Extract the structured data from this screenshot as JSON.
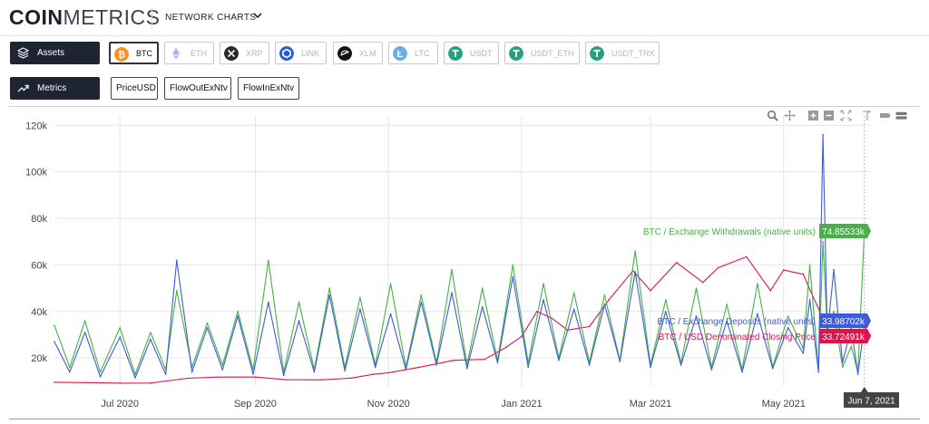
{
  "header": {
    "logo_bold": "COIN",
    "logo_light": "METRICS",
    "nav_label": "NETWORK CHARTS"
  },
  "assets_button": {
    "label": "Assets"
  },
  "metrics_button": {
    "label": "Metrics"
  },
  "assets": [
    {
      "label": "BTC",
      "icon": "btc-icon",
      "color": "#f7931a",
      "active": true
    },
    {
      "label": "ETH",
      "icon": "eth-icon",
      "color": "#627eea",
      "active": false
    },
    {
      "label": "XRP",
      "icon": "xrp-icon",
      "color": "#23292f",
      "active": false
    },
    {
      "label": "LINK",
      "icon": "link-icon",
      "color": "#2a5ada",
      "active": false
    },
    {
      "label": "XLM",
      "icon": "xlm-icon",
      "color": "#111111",
      "active": false
    },
    {
      "label": "LTC",
      "icon": "ltc-icon",
      "color": "#6aaee8",
      "active": false
    },
    {
      "label": "USDT",
      "icon": "usdt-icon",
      "color": "#26a17b",
      "active": false
    },
    {
      "label": "USDT_ETH",
      "icon": "usdt-eth-icon",
      "color": "#26a17b",
      "active": false
    },
    {
      "label": "USDT_TRX",
      "icon": "usdt-trx-icon",
      "color": "#26a17b",
      "active": false
    }
  ],
  "metrics": [
    {
      "label": "PriceUSD"
    },
    {
      "label": "FlowOutExNtv"
    },
    {
      "label": "FlowInExNtv"
    }
  ],
  "toolbar_icons": [
    "zoom-icon",
    "pan-icon",
    "zoom-in-icon",
    "zoom-out-icon",
    "reset-zoom-icon",
    "lasso-icon",
    "toggle-spikelines-icon",
    "compare-hover-icon"
  ],
  "chart_data": {
    "type": "line",
    "yticks": [
      "20k",
      "40k",
      "60k",
      "80k",
      "100k",
      "120k"
    ],
    "ytick_values": [
      20000,
      40000,
      60000,
      80000,
      100000,
      120000
    ],
    "ylim": [
      8000,
      124000
    ],
    "xlim": [
      "2020-06-01",
      "2021-06-10"
    ],
    "xticks": [
      {
        "label": "Jul 2020",
        "date": "2020-07-01"
      },
      {
        "label": "Sep 2020",
        "date": "2020-09-01"
      },
      {
        "label": "Nov 2020",
        "date": "2020-11-01"
      },
      {
        "label": "Jan 2021",
        "date": "2021-01-01"
      },
      {
        "label": "Mar 2021",
        "date": "2021-03-01"
      },
      {
        "label": "May 2021",
        "date": "2021-05-01"
      }
    ],
    "grid": true,
    "hover_date": "Jun 7, 2021",
    "series": [
      {
        "name": "BTC / USD Denominated Closing Price",
        "color": "#e0144c",
        "hover_value": "33.72491k",
        "points": [
          [
            "2020-06-01",
            9600
          ],
          [
            "2020-06-15",
            9450
          ],
          [
            "2020-07-01",
            9200
          ],
          [
            "2020-07-15",
            9250
          ],
          [
            "2020-08-01",
            11300
          ],
          [
            "2020-08-15",
            11800
          ],
          [
            "2020-09-01",
            11800
          ],
          [
            "2020-09-15",
            10700
          ],
          [
            "2020-10-01",
            10600
          ],
          [
            "2020-10-15",
            11400
          ],
          [
            "2020-10-25",
            13000
          ],
          [
            "2020-11-01",
            13700
          ],
          [
            "2020-11-15",
            16000
          ],
          [
            "2020-12-01",
            19000
          ],
          [
            "2020-12-15",
            19400
          ],
          [
            "2020-12-25",
            24700
          ],
          [
            "2021-01-01",
            29300
          ],
          [
            "2021-01-08",
            40000
          ],
          [
            "2021-01-15",
            37000
          ],
          [
            "2021-01-22",
            32000
          ],
          [
            "2021-02-01",
            33500
          ],
          [
            "2021-02-10",
            45000
          ],
          [
            "2021-02-21",
            57500
          ],
          [
            "2021-03-01",
            49000
          ],
          [
            "2021-03-13",
            61000
          ],
          [
            "2021-03-25",
            52500
          ],
          [
            "2021-04-01",
            58800
          ],
          [
            "2021-04-14",
            63500
          ],
          [
            "2021-04-25",
            49000
          ],
          [
            "2021-05-01",
            57800
          ],
          [
            "2021-05-10",
            56000
          ],
          [
            "2021-05-13",
            49500
          ],
          [
            "2021-05-19",
            37000
          ],
          [
            "2021-05-25",
            38800
          ],
          [
            "2021-06-01",
            36700
          ],
          [
            "2021-06-07",
            33725
          ]
        ]
      },
      {
        "name": "BTC / Exchange Deposits (native units)",
        "color": "#3e5bd8",
        "hover_value": "33.98702k",
        "points": [
          [
            "2020-06-01",
            27000
          ],
          [
            "2020-06-08",
            14000
          ],
          [
            "2020-06-15",
            31000
          ],
          [
            "2020-06-22",
            12000
          ],
          [
            "2020-07-01",
            29000
          ],
          [
            "2020-07-08",
            11500
          ],
          [
            "2020-07-15",
            28000
          ],
          [
            "2020-07-22",
            13000
          ],
          [
            "2020-07-27",
            62000
          ],
          [
            "2020-08-03",
            14000
          ],
          [
            "2020-08-10",
            33000
          ],
          [
            "2020-08-17",
            15000
          ],
          [
            "2020-08-24",
            38000
          ],
          [
            "2020-08-31",
            13000
          ],
          [
            "2020-09-07",
            44000
          ],
          [
            "2020-09-14",
            12500
          ],
          [
            "2020-09-21",
            36000
          ],
          [
            "2020-09-28",
            14000
          ],
          [
            "2020-10-05",
            47000
          ],
          [
            "2020-10-12",
            14500
          ],
          [
            "2020-10-19",
            41000
          ],
          [
            "2020-10-26",
            16000
          ],
          [
            "2020-11-02",
            39000
          ],
          [
            "2020-11-09",
            15000
          ],
          [
            "2020-11-16",
            44000
          ],
          [
            "2020-11-23",
            17000
          ],
          [
            "2020-11-30",
            48000
          ],
          [
            "2020-12-07",
            15500
          ],
          [
            "2020-12-14",
            42000
          ],
          [
            "2020-12-21",
            18000
          ],
          [
            "2020-12-28",
            55000
          ],
          [
            "2021-01-04",
            16000
          ],
          [
            "2021-01-11",
            45000
          ],
          [
            "2021-01-18",
            19000
          ],
          [
            "2021-01-25",
            41000
          ],
          [
            "2021-02-01",
            17000
          ],
          [
            "2021-02-08",
            43000
          ],
          [
            "2021-02-15",
            18500
          ],
          [
            "2021-02-22",
            57000
          ],
          [
            "2021-03-01",
            16000
          ],
          [
            "2021-03-08",
            40000
          ],
          [
            "2021-03-15",
            17000
          ],
          [
            "2021-03-22",
            38000
          ],
          [
            "2021-03-29",
            15000
          ],
          [
            "2021-04-05",
            36000
          ],
          [
            "2021-04-12",
            14000
          ],
          [
            "2021-04-19",
            39000
          ],
          [
            "2021-04-26",
            15500
          ],
          [
            "2021-05-03",
            33000
          ],
          [
            "2021-05-10",
            22000
          ],
          [
            "2021-05-13",
            45000
          ],
          [
            "2021-05-17",
            14000
          ],
          [
            "2021-05-19",
            116000
          ],
          [
            "2021-05-21",
            30000
          ],
          [
            "2021-05-24",
            58000
          ],
          [
            "2021-05-28",
            18000
          ],
          [
            "2021-06-01",
            33000
          ],
          [
            "2021-06-04",
            13000
          ],
          [
            "2021-06-07",
            33987
          ]
        ]
      },
      {
        "name": "BTC / Exchange Withdrawals (native units)",
        "color": "#46b146",
        "hover_value": "74.85533k",
        "points": [
          [
            "2020-06-01",
            34000
          ],
          [
            "2020-06-08",
            16000
          ],
          [
            "2020-06-15",
            36000
          ],
          [
            "2020-06-22",
            14000
          ],
          [
            "2020-07-01",
            33000
          ],
          [
            "2020-07-08",
            13000
          ],
          [
            "2020-07-15",
            31000
          ],
          [
            "2020-07-22",
            15000
          ],
          [
            "2020-07-27",
            49000
          ],
          [
            "2020-08-03",
            16000
          ],
          [
            "2020-08-10",
            35000
          ],
          [
            "2020-08-17",
            17000
          ],
          [
            "2020-08-24",
            40000
          ],
          [
            "2020-08-31",
            15000
          ],
          [
            "2020-09-07",
            62000
          ],
          [
            "2020-09-14",
            14000
          ],
          [
            "2020-09-21",
            44000
          ],
          [
            "2020-09-28",
            15000
          ],
          [
            "2020-10-05",
            50000
          ],
          [
            "2020-10-12",
            16000
          ],
          [
            "2020-10-19",
            46000
          ],
          [
            "2020-10-26",
            17000
          ],
          [
            "2020-11-02",
            52000
          ],
          [
            "2020-11-09",
            16000
          ],
          [
            "2020-11-16",
            47000
          ],
          [
            "2020-11-23",
            18000
          ],
          [
            "2020-11-30",
            58000
          ],
          [
            "2020-12-07",
            17000
          ],
          [
            "2020-12-14",
            50000
          ],
          [
            "2020-12-21",
            19000
          ],
          [
            "2020-12-28",
            60000
          ],
          [
            "2021-01-04",
            18000
          ],
          [
            "2021-01-11",
            52000
          ],
          [
            "2021-01-18",
            20000
          ],
          [
            "2021-01-25",
            48000
          ],
          [
            "2021-02-01",
            18000
          ],
          [
            "2021-02-08",
            47000
          ],
          [
            "2021-02-15",
            19000
          ],
          [
            "2021-02-22",
            66000
          ],
          [
            "2021-03-01",
            17000
          ],
          [
            "2021-03-08",
            45000
          ],
          [
            "2021-03-15",
            18000
          ],
          [
            "2021-03-22",
            50000
          ],
          [
            "2021-03-29",
            16000
          ],
          [
            "2021-04-05",
            43000
          ],
          [
            "2021-04-12",
            15000
          ],
          [
            "2021-04-19",
            52000
          ],
          [
            "2021-04-26",
            16000
          ],
          [
            "2021-05-03",
            38000
          ],
          [
            "2021-05-10",
            24000
          ],
          [
            "2021-05-13",
            60000
          ],
          [
            "2021-05-17",
            15000
          ],
          [
            "2021-05-19",
            70000
          ],
          [
            "2021-05-21",
            32000
          ],
          [
            "2021-05-24",
            40000
          ],
          [
            "2021-05-28",
            16000
          ],
          [
            "2021-06-01",
            25000
          ],
          [
            "2021-06-04",
            14000
          ],
          [
            "2021-06-07",
            74855
          ]
        ]
      }
    ]
  }
}
